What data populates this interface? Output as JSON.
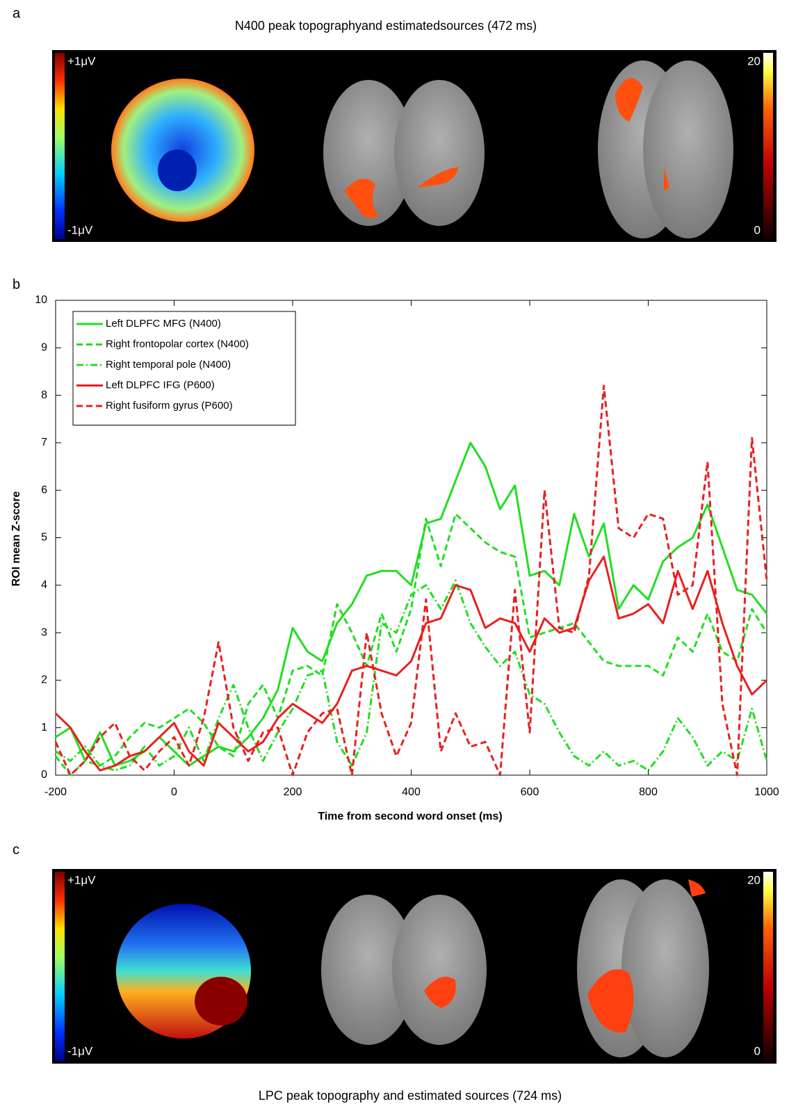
{
  "panel_a": {
    "label": "a",
    "title": "N400 peak topographyand estimatedsources (472 ms)",
    "topo_max": "+1μV",
    "topo_min": "-1μV",
    "source_max": "20",
    "source_min": "0"
  },
  "panel_c": {
    "label": "c",
    "title": "LPC peak topography and estimated sources (724 ms)",
    "topo_max": "+1μV",
    "topo_min": "-1μV",
    "source_max": "20",
    "source_min": "0"
  },
  "chart_data": {
    "type": "line",
    "label": "b",
    "x_label": "Time from second word onset (ms)",
    "y_label": "ROI mean Z-score",
    "xlim": [
      -200,
      1000
    ],
    "ylim": [
      0,
      10
    ],
    "xticks": [
      -200,
      0,
      200,
      400,
      600,
      800,
      1000
    ],
    "yticks": [
      0,
      1,
      2,
      3,
      4,
      5,
      6,
      7,
      8,
      9,
      10
    ],
    "grid": false,
    "legend": "upper left",
    "x": [
      -200,
      -175,
      -150,
      -125,
      -100,
      -75,
      -50,
      -25,
      0,
      25,
      50,
      75,
      100,
      125,
      150,
      175,
      200,
      225,
      250,
      275,
      300,
      325,
      350,
      375,
      400,
      425,
      450,
      475,
      500,
      525,
      550,
      575,
      600,
      625,
      650,
      675,
      700,
      725,
      750,
      775,
      800,
      825,
      850,
      875,
      900,
      925,
      950,
      975,
      1000
    ],
    "series": [
      {
        "name": "Left DLPFC MFG (N400)",
        "color": "#22dd22",
        "dash": "solid",
        "values": [
          0.8,
          1.0,
          0.3,
          0.9,
          0.2,
          0.3,
          0.5,
          0.8,
          0.5,
          0.2,
          0.4,
          0.6,
          0.5,
          0.8,
          1.2,
          1.8,
          3.1,
          2.6,
          2.4,
          3.2,
          3.6,
          4.2,
          4.3,
          4.3,
          4.0,
          5.3,
          5.4,
          6.2,
          7.0,
          6.5,
          5.6,
          6.1,
          4.2,
          4.3,
          4.0,
          5.5,
          4.6,
          5.3,
          3.5,
          4.0,
          3.7,
          4.5,
          4.8,
          5.0,
          5.7,
          4.8,
          3.9,
          3.8,
          3.4
        ]
      },
      {
        "name": "Right frontopolar cortex (N400)",
        "color": "#22dd22",
        "dash": "dashed",
        "values": [
          0.4,
          0.0,
          0.3,
          0.2,
          0.4,
          0.8,
          1.1,
          1.0,
          1.2,
          1.4,
          1.1,
          0.6,
          0.4,
          1.5,
          1.9,
          1.2,
          2.2,
          2.3,
          2.1,
          3.6,
          3.0,
          2.3,
          3.4,
          2.6,
          3.5,
          5.4,
          4.4,
          5.5,
          5.2,
          4.9,
          4.7,
          4.6,
          2.9,
          3.0,
          3.1,
          3.2,
          2.8,
          2.4,
          2.3,
          2.3,
          2.3,
          2.1,
          2.9,
          2.6,
          3.4,
          2.6,
          2.4,
          3.5,
          3.0
        ]
      },
      {
        "name": "Right temporal pole (N400)",
        "color": "#22dd22",
        "dash": "dashdot",
        "values": [
          0.5,
          0.3,
          0.6,
          0.2,
          0.1,
          0.2,
          0.6,
          0.2,
          0.4,
          1.0,
          0.3,
          1.2,
          1.9,
          1.0,
          0.3,
          0.9,
          1.4,
          2.1,
          2.2,
          0.7,
          0.2,
          0.9,
          3.2,
          3.0,
          3.8,
          4.0,
          3.5,
          4.1,
          3.2,
          2.7,
          2.3,
          2.6,
          1.7,
          1.5,
          0.9,
          0.4,
          0.2,
          0.5,
          0.2,
          0.3,
          0.1,
          0.5,
          1.2,
          0.8,
          0.2,
          0.5,
          0.3,
          1.4,
          0.3
        ]
      },
      {
        "name": "Left DLPFC IFG (P600)",
        "color": "#e82020",
        "dash": "solid",
        "values": [
          1.3,
          1.0,
          0.5,
          0.1,
          0.2,
          0.4,
          0.5,
          0.8,
          1.1,
          0.5,
          0.2,
          1.1,
          0.8,
          0.5,
          0.7,
          1.2,
          1.5,
          1.3,
          1.1,
          1.5,
          2.2,
          2.3,
          2.2,
          2.1,
          2.4,
          3.2,
          3.3,
          4.0,
          3.9,
          3.1,
          3.3,
          3.2,
          2.6,
          3.3,
          3.0,
          3.1,
          4.1,
          4.6,
          3.3,
          3.4,
          3.6,
          3.2,
          4.3,
          3.5,
          4.3,
          3.2,
          2.3,
          1.7,
          2.0
        ]
      },
      {
        "name": "Right fusiform gyrus (P600)",
        "color": "#e82020",
        "dash": "dashed",
        "values": [
          0.7,
          0.0,
          0.3,
          0.8,
          1.1,
          0.4,
          0.1,
          0.5,
          0.8,
          0.2,
          1.2,
          2.8,
          1.0,
          0.3,
          0.9,
          1.0,
          0.0,
          0.9,
          1.3,
          1.4,
          0.0,
          3.0,
          1.3,
          0.4,
          1.1,
          3.7,
          0.5,
          1.3,
          0.6,
          0.7,
          0.0,
          3.9,
          0.9,
          6.0,
          3.1,
          3.0,
          4.2,
          8.2,
          5.2,
          5.0,
          5.5,
          5.4,
          3.8,
          4.0,
          6.6,
          1.5,
          0.0,
          7.1,
          4.1
        ]
      }
    ]
  }
}
